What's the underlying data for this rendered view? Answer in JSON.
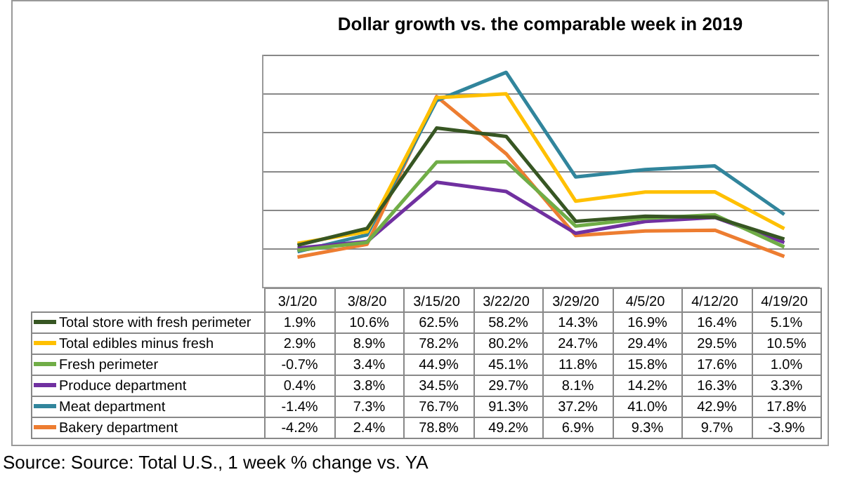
{
  "chart_data": {
    "type": "line",
    "title": "Dollar growth vs. the comparable week in 2019",
    "categories": [
      "3/1/20",
      "3/8/20",
      "3/15/20",
      "3/22/20",
      "3/29/20",
      "4/5/20",
      "4/12/20",
      "4/19/20"
    ],
    "series": [
      {
        "name": "Total store with fresh perimeter",
        "color": "#375623",
        "values": [
          1.9,
          10.6,
          62.5,
          58.2,
          14.3,
          16.9,
          16.4,
          5.1
        ],
        "value_labels": [
          "1.9%",
          "10.6%",
          "62.5%",
          "58.2%",
          "14.3%",
          "16.9%",
          "16.4%",
          "5.1%"
        ]
      },
      {
        "name": "Total edibles minus fresh",
        "color": "#ffc000",
        "values": [
          2.9,
          8.9,
          78.2,
          80.2,
          24.7,
          29.4,
          29.5,
          10.5
        ],
        "value_labels": [
          "2.9%",
          "8.9%",
          "78.2%",
          "80.2%",
          "24.7%",
          "29.4%",
          "29.5%",
          "10.5%"
        ]
      },
      {
        "name": "Fresh perimeter",
        "color": "#70ad47",
        "values": [
          -0.7,
          3.4,
          44.9,
          45.1,
          11.8,
          15.8,
          17.6,
          1.0
        ],
        "value_labels": [
          "-0.7%",
          "3.4%",
          "44.9%",
          "45.1%",
          "11.8%",
          "15.8%",
          "17.6%",
          "1.0%"
        ]
      },
      {
        "name": "Produce department",
        "color": "#7030a0",
        "values": [
          0.4,
          3.8,
          34.5,
          29.7,
          8.1,
          14.2,
          16.3,
          3.3
        ],
        "value_labels": [
          "0.4%",
          "3.8%",
          "34.5%",
          "29.7%",
          "8.1%",
          "14.2%",
          "16.3%",
          "3.3%"
        ]
      },
      {
        "name": "Meat department",
        "color": "#31859c",
        "values": [
          -1.4,
          7.3,
          76.7,
          91.3,
          37.2,
          41.0,
          42.9,
          17.8
        ],
        "value_labels": [
          "-1.4%",
          "7.3%",
          "76.7%",
          "91.3%",
          "37.2%",
          "41.0%",
          "42.9%",
          "17.8%"
        ]
      },
      {
        "name": "Bakery department",
        "color": "#ed7d31",
        "values": [
          -4.2,
          2.4,
          78.8,
          49.2,
          6.9,
          9.3,
          9.7,
          -3.9
        ],
        "value_labels": [
          "-4.2%",
          "2.4%",
          "78.8%",
          "49.2%",
          "6.9%",
          "9.3%",
          "9.7%",
          "-3.9%"
        ]
      }
    ],
    "ylim": [
      -20,
      100
    ],
    "yticks": [
      {
        "value": -20,
        "label": null
      },
      {
        "value": 0,
        "label": null
      },
      {
        "value": 20,
        "label": null
      },
      {
        "value": 40,
        "label": null
      },
      {
        "value": 60,
        "label": null
      },
      {
        "value": 80,
        "label": null
      },
      {
        "value": 100,
        "label": null
      }
    ],
    "grid": "y",
    "legend": "bottom",
    "tick_labels": "x",
    "marker": "none",
    "line_style": "solid",
    "annotations": [
      "Source: Source: Total U.S., 1 week % change vs. YA"
    ]
  }
}
